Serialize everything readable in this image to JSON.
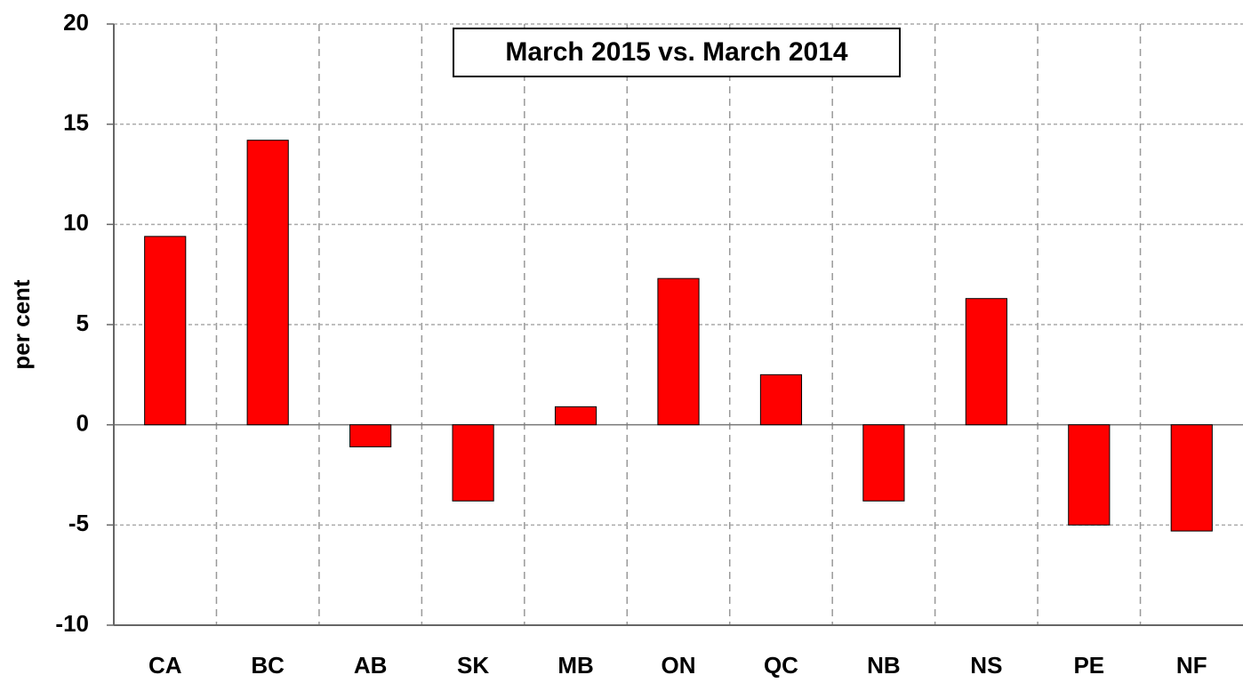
{
  "chart_data": {
    "type": "bar",
    "title": "March 2015 vs. March 2014",
    "y_label": "per cent",
    "categories": [
      "CA",
      "BC",
      "AB",
      "SK",
      "MB",
      "ON",
      "QC",
      "NB",
      "NS",
      "PE",
      "NF"
    ],
    "values": [
      9.4,
      14.2,
      -1.1,
      -3.8,
      0.9,
      7.3,
      2.5,
      -3.8,
      6.3,
      -5.0,
      -5.3
    ],
    "color": "#ff0000",
    "ylim": [
      -10,
      20
    ],
    "yticks": [
      -10,
      -5,
      0,
      5,
      10,
      15,
      20
    ],
    "grid": true
  }
}
